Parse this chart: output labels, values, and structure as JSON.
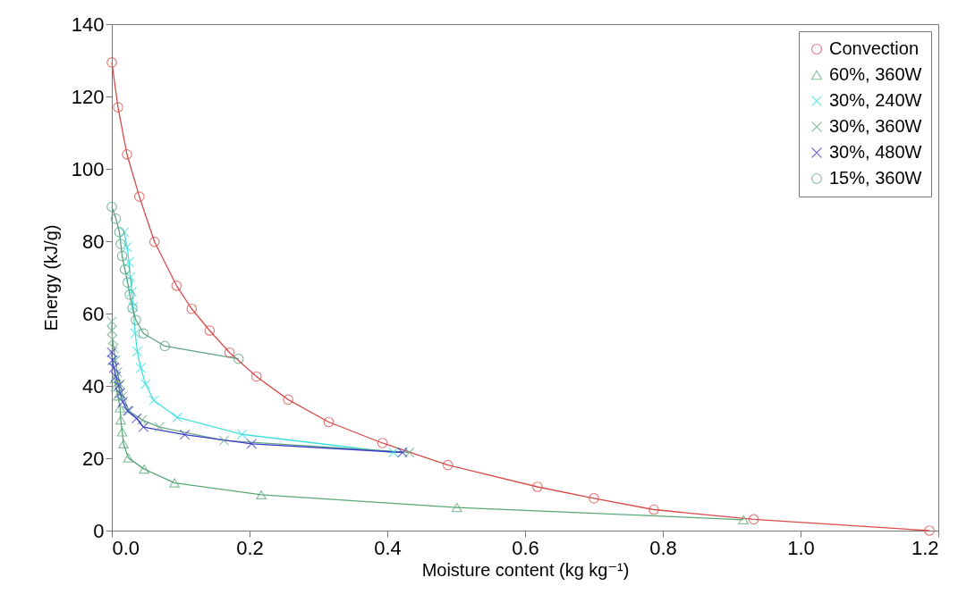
{
  "chart_data": {
    "type": "line",
    "xlabel": "Moisture content (kg kg⁻¹)",
    "ylabel": "Energy (kJ/g)",
    "xlim": [
      0,
      1.2
    ],
    "ylim": [
      0,
      140
    ],
    "xticks": [
      {
        "value": 0,
        "label": "0.0"
      },
      0.2,
      0.4,
      0.6,
      0.8,
      {
        "value": 1,
        "label": "1.0"
      },
      {
        "value": 1.2,
        "label": "1.2"
      }
    ],
    "yticks": [
      0,
      20,
      40,
      60,
      80,
      100,
      120,
      140
    ],
    "grid": false,
    "legend": "top right",
    "series": [
      {
        "name": "Convection",
        "color": "#d94a4a",
        "marker": "circle",
        "x": [
          0.0,
          0.009,
          0.022,
          0.04,
          0.062,
          0.094,
          0.116,
          0.142,
          0.171,
          0.21,
          0.256,
          0.315,
          0.393,
          0.488,
          0.618,
          0.7,
          0.787,
          0.932,
          1.187
        ],
        "values": [
          129.4,
          117.0,
          104.0,
          92.3,
          79.8,
          67.7,
          61.3,
          55.3,
          49.2,
          42.6,
          36.2,
          30.0,
          24.2,
          18.1,
          12.1,
          8.9,
          5.8,
          3.1,
          0
        ]
      },
      {
        "name": "60%, 360W",
        "color": "#5aa878",
        "marker": "triangle",
        "x": [
          0.005,
          0.006,
          0.009,
          0.012,
          0.013,
          0.015,
          0.017,
          0.024,
          0.047,
          0.091,
          0.217,
          0.501,
          0.917
        ],
        "values": [
          42,
          39.7,
          37.2,
          33.9,
          30.6,
          27.3,
          24.0,
          20.1,
          17.0,
          13.2,
          9.9,
          6.4,
          3.0
        ]
      },
      {
        "name": "30%, 240W",
        "color": "#40e0e0",
        "marker": "cross",
        "x": [
          0.018,
          0.022,
          0.025,
          0.027,
          0.029,
          0.031,
          0.034,
          0.037,
          0.042,
          0.049,
          0.061,
          0.095,
          0.189,
          0.409
        ],
        "values": [
          82.5,
          78.4,
          74.2,
          70.1,
          66.0,
          61.9,
          54.5,
          49.5,
          45.0,
          40.5,
          36.0,
          31.3,
          26.6,
          21.6
        ]
      },
      {
        "name": "30%, 360W",
        "color": "#6aa888",
        "marker": "cross",
        "x": [
          0,
          0,
          0.001,
          0.003,
          0.005,
          0.008,
          0.012,
          0.016,
          0.025,
          0.044,
          0.069,
          0.163,
          0.432
        ],
        "values": [
          57.8,
          55.3,
          52.8,
          50.4,
          47.1,
          43.8,
          40.5,
          37.2,
          33.1,
          30.6,
          28.6,
          24.9,
          21.6
        ]
      },
      {
        "name": "30%, 480W",
        "color": "#3a3ac8",
        "marker": "cross",
        "x": [
          0,
          0.001,
          0.003,
          0.006,
          0.01,
          0.012,
          0.016,
          0.023,
          0.036,
          0.046,
          0.106,
          0.203,
          0.422
        ],
        "values": [
          49.3,
          47.1,
          45.0,
          42.6,
          40.1,
          38.0,
          35.6,
          33.1,
          31.0,
          28.6,
          26.5,
          24.0,
          21.6
        ]
      },
      {
        "name": "15%, 360W",
        "color": "#5aa080",
        "marker": "circle",
        "x": [
          0.0,
          0.006,
          0.011,
          0.013,
          0.015,
          0.019,
          0.023,
          0.026,
          0.03,
          0.035,
          0.046,
          0.077,
          0.184
        ],
        "values": [
          89.5,
          86.2,
          82.5,
          79.2,
          75.9,
          72.2,
          68.6,
          65.2,
          61.5,
          58.2,
          54.5,
          51.0,
          47.5
        ]
      }
    ]
  }
}
